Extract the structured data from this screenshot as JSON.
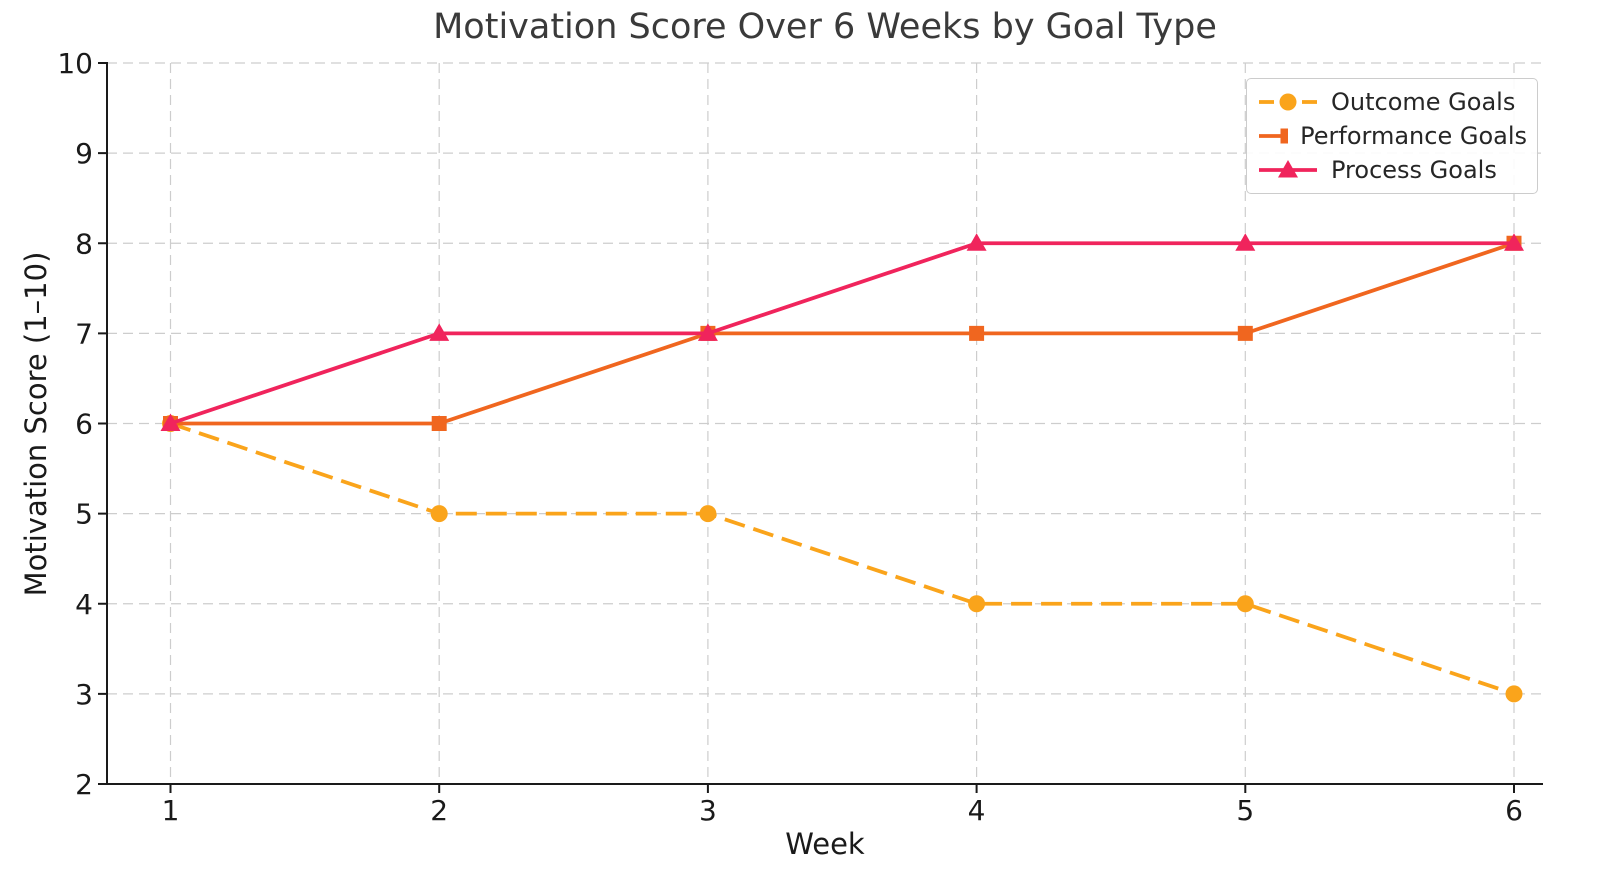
{
  "chart_data": {
    "type": "line",
    "title": "Motivation Score Over 6 Weeks by Goal Type",
    "xlabel": "Week",
    "ylabel": "Motivation Score (1–10)",
    "x": [
      1,
      2,
      3,
      4,
      5,
      6
    ],
    "x_tick_labels": [
      "1",
      "2",
      "3",
      "4",
      "5",
      "6"
    ],
    "y_ticks": [
      2,
      3,
      4,
      5,
      6,
      7,
      8,
      9,
      10
    ],
    "y_tick_labels": [
      "2",
      "3",
      "4",
      "5",
      "6",
      "7",
      "8",
      "9",
      "10"
    ],
    "ylim": [
      2,
      10
    ],
    "grid": true,
    "grid_style": "dashed",
    "legend_position": "upper right",
    "series": [
      {
        "name": "Outcome Goals",
        "values": [
          6,
          5,
          5,
          4,
          4,
          3
        ],
        "color": "#FAA41B",
        "line_style": "dashed",
        "marker": "circle"
      },
      {
        "name": "Performance Goals",
        "values": [
          6,
          6,
          7,
          7,
          7,
          8
        ],
        "color": "#F0661F",
        "line_style": "solid",
        "marker": "square"
      },
      {
        "name": "Process Goals",
        "values": [
          6,
          7,
          7,
          8,
          8,
          8
        ],
        "color": "#F0245C",
        "line_style": "solid",
        "marker": "triangle"
      }
    ],
    "colors": {
      "grid": "#cdcdcd",
      "axis": "#1a1a1a",
      "tick_text": "#1a1a1a",
      "title_text": "#3a3a3a"
    }
  }
}
